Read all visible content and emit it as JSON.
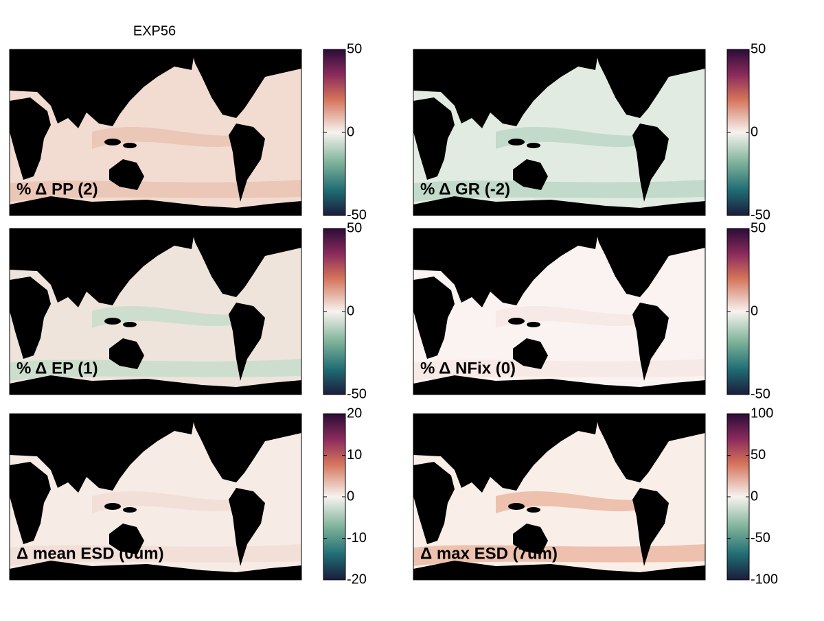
{
  "title": "EXP56",
  "panels": [
    {
      "label": "% Δ PP (2)",
      "colorbar": {
        "ylim": [
          -50,
          50
        ],
        "yticks": [
          -50,
          0,
          50
        ]
      }
    },
    {
      "label": "% Δ GR (-2)",
      "colorbar": {
        "ylim": [
          -50,
          50
        ],
        "yticks": [
          -50,
          0,
          50
        ]
      }
    },
    {
      "label": "% Δ EP (1)",
      "colorbar": {
        "ylim": [
          -50,
          50
        ],
        "yticks": [
          -50,
          0,
          50
        ]
      }
    },
    {
      "label": "% Δ NFix (0)",
      "colorbar": {
        "ylim": [
          -50,
          50
        ],
        "yticks": [
          -50,
          0,
          50
        ]
      }
    },
    {
      "label": "Δ mean ESD (0um)",
      "colorbar": {
        "ylim": [
          -20,
          20
        ],
        "yticks": [
          -20,
          -10,
          0,
          10,
          20
        ]
      }
    },
    {
      "label": "Δ max ESD (7um)",
      "colorbar": {
        "ylim": [
          -100,
          100
        ],
        "yticks": [
          -100,
          -50,
          0,
          50,
          100
        ]
      }
    }
  ]
}
